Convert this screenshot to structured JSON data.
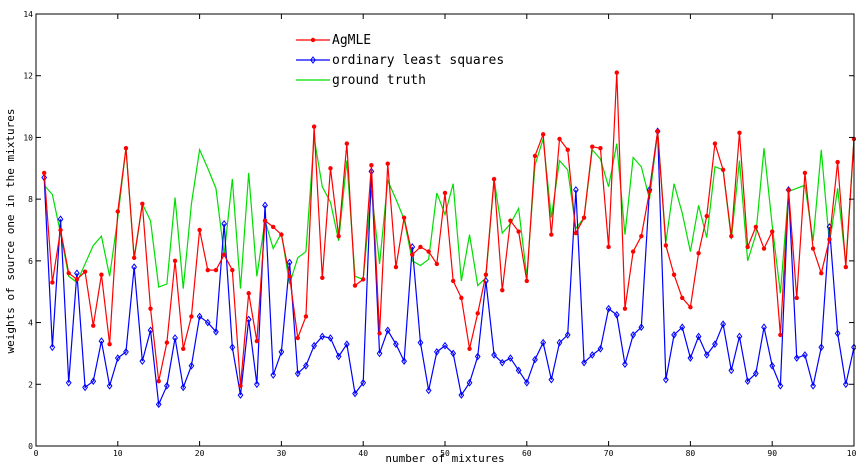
{
  "chart_data": {
    "type": "line",
    "xlabel": "number of mixtures",
    "ylabel": "weights of source one in the mixtures",
    "xlim": [
      0,
      100
    ],
    "ylim": [
      0,
      14
    ],
    "xticks": [
      0,
      10,
      20,
      30,
      40,
      50,
      60,
      70,
      80,
      90,
      100
    ],
    "yticks": [
      0,
      2,
      4,
      6,
      8,
      10,
      12,
      14
    ],
    "grid": false,
    "legend_position": "top-left",
    "series": [
      {
        "name": "AgMLE",
        "color": "#ff0000",
        "marker": "dot",
        "x": [
          1,
          2,
          3,
          4,
          5,
          6,
          7,
          8,
          9,
          10,
          11,
          12,
          13,
          14,
          15,
          16,
          17,
          18,
          19,
          20,
          21,
          22,
          23,
          24,
          25,
          26,
          27,
          28,
          29,
          30,
          31,
          32,
          33,
          34,
          35,
          36,
          37,
          38,
          39,
          40,
          41,
          42,
          43,
          44,
          45,
          46,
          47,
          48,
          49,
          50,
          51,
          52,
          53,
          54,
          55,
          56,
          57,
          58,
          59,
          60,
          61,
          62,
          63,
          64,
          65,
          66,
          67,
          68,
          69,
          70,
          71,
          72,
          73,
          74,
          75,
          76,
          77,
          78,
          79,
          80,
          81,
          82,
          83,
          84,
          85,
          86,
          87,
          88,
          89,
          90,
          91,
          92,
          93,
          94,
          95,
          96,
          97,
          98,
          99,
          100
        ],
        "values": [
          8.85,
          5.3,
          7.0,
          5.6,
          5.4,
          5.65,
          3.9,
          5.55,
          3.3,
          7.6,
          9.65,
          6.1,
          7.85,
          4.45,
          2.1,
          3.35,
          6.0,
          3.15,
          4.2,
          7.0,
          5.7,
          5.7,
          6.2,
          5.7,
          1.95,
          4.95,
          3.4,
          7.3,
          7.1,
          6.85,
          5.5,
          3.5,
          4.2,
          10.35,
          5.45,
          9.0,
          6.8,
          9.8,
          5.2,
          5.4,
          9.1,
          3.65,
          9.15,
          5.8,
          7.4,
          6.2,
          6.45,
          6.3,
          5.9,
          8.2,
          5.35,
          4.8,
          3.15,
          4.3,
          5.55,
          8.65,
          5.05,
          7.3,
          6.95,
          5.35,
          9.4,
          10.1,
          6.85,
          9.95,
          9.6,
          6.9,
          7.4,
          9.7,
          9.65,
          6.45,
          12.1,
          4.45,
          6.3,
          6.8,
          8.25,
          10.2,
          6.5,
          5.55,
          4.8,
          4.5,
          6.25,
          7.45,
          9.8,
          8.95,
          6.8,
          10.15,
          6.45,
          7.1,
          6.4,
          6.95,
          3.6,
          8.3,
          4.8,
          8.85,
          6.4,
          5.6,
          6.7,
          9.2,
          5.8,
          9.95
        ]
      },
      {
        "name": "ordinary least squares",
        "color": "#0000ff",
        "marker": "diamond",
        "x": [
          1,
          2,
          3,
          4,
          5,
          6,
          7,
          8,
          9,
          10,
          11,
          12,
          13,
          14,
          15,
          16,
          17,
          18,
          19,
          20,
          21,
          22,
          23,
          24,
          25,
          26,
          27,
          28,
          29,
          30,
          31,
          32,
          33,
          34,
          35,
          36,
          37,
          38,
          39,
          40,
          41,
          42,
          43,
          44,
          45,
          46,
          47,
          48,
          49,
          50,
          51,
          52,
          53,
          54,
          55,
          56,
          57,
          58,
          59,
          60,
          61,
          62,
          63,
          64,
          65,
          66,
          67,
          68,
          69,
          70,
          71,
          72,
          73,
          74,
          75,
          76,
          77,
          78,
          79,
          80,
          81,
          82,
          83,
          84,
          85,
          86,
          87,
          88,
          89,
          90,
          91,
          92,
          93,
          94,
          95,
          96,
          97,
          98,
          99,
          100
        ],
        "values": [
          8.7,
          3.2,
          7.35,
          2.05,
          5.6,
          1.9,
          2.1,
          3.4,
          1.95,
          2.85,
          3.05,
          5.8,
          2.75,
          3.75,
          1.35,
          1.95,
          3.5,
          1.9,
          2.6,
          4.2,
          4.0,
          3.7,
          7.2,
          3.2,
          1.65,
          4.1,
          2.0,
          7.8,
          2.3,
          3.05,
          5.95,
          2.35,
          2.6,
          3.25,
          3.55,
          3.5,
          2.9,
          3.3,
          1.7,
          2.05,
          8.9,
          3.0,
          3.75,
          3.3,
          2.75,
          6.45,
          3.35,
          1.8,
          3.05,
          3.25,
          3.0,
          1.65,
          2.05,
          2.9,
          5.35,
          2.95,
          2.7,
          2.85,
          2.45,
          2.05,
          2.8,
          3.35,
          2.15,
          3.35,
          3.6,
          8.3,
          2.7,
          2.95,
          3.15,
          4.45,
          4.25,
          2.65,
          3.6,
          3.85,
          8.3,
          10.2,
          2.15,
          3.6,
          3.85,
          2.85,
          3.55,
          2.95,
          3.3,
          3.95,
          2.45,
          3.55,
          2.1,
          2.35,
          3.85,
          2.6,
          1.95,
          8.3,
          2.85,
          2.95,
          1.95,
          3.2,
          7.1,
          3.65,
          2.0,
          3.2
        ]
      },
      {
        "name": "ground truth",
        "color": "#00dd00",
        "marker": "none",
        "x": [
          1,
          2,
          3,
          4,
          5,
          6,
          7,
          8,
          9,
          10,
          11,
          12,
          13,
          14,
          15,
          16,
          17,
          18,
          19,
          20,
          21,
          22,
          23,
          24,
          25,
          26,
          27,
          28,
          29,
          30,
          31,
          32,
          33,
          34,
          35,
          36,
          37,
          38,
          39,
          40,
          41,
          42,
          43,
          44,
          45,
          46,
          47,
          48,
          49,
          50,
          51,
          52,
          53,
          54,
          55,
          56,
          57,
          58,
          59,
          60,
          61,
          62,
          63,
          64,
          65,
          66,
          67,
          68,
          69,
          70,
          71,
          72,
          73,
          74,
          75,
          76,
          77,
          78,
          79,
          80,
          81,
          82,
          83,
          84,
          85,
          86,
          87,
          88,
          89,
          90,
          91,
          92,
          93,
          94,
          95,
          96,
          97,
          98,
          99,
          100
        ],
        "values": [
          8.45,
          8.15,
          6.9,
          5.5,
          5.3,
          5.9,
          6.5,
          6.8,
          5.5,
          7.4,
          9.65,
          6.05,
          7.85,
          7.3,
          5.15,
          5.25,
          8.05,
          5.1,
          7.85,
          9.6,
          9.0,
          8.35,
          6.2,
          8.65,
          5.1,
          8.85,
          5.5,
          7.3,
          6.4,
          6.9,
          5.25,
          6.1,
          6.3,
          10.0,
          8.4,
          7.9,
          6.65,
          9.25,
          5.5,
          5.4,
          8.3,
          5.9,
          8.6,
          8.0,
          7.35,
          6.0,
          5.85,
          6.05,
          8.2,
          7.5,
          8.5,
          5.35,
          6.85,
          5.2,
          5.45,
          8.65,
          6.9,
          7.2,
          7.7,
          5.5,
          9.1,
          9.95,
          7.4,
          9.25,
          8.95,
          7.05,
          7.4,
          9.6,
          9.3,
          8.4,
          9.8,
          6.85,
          9.35,
          9.05,
          8.0,
          10.2,
          6.6,
          8.5,
          7.55,
          6.3,
          7.8,
          6.75,
          9.05,
          8.95,
          6.7,
          9.25,
          6.0,
          6.85,
          9.65,
          7.15,
          4.95,
          8.25,
          8.35,
          8.45,
          6.65,
          9.6,
          6.55,
          8.35,
          5.9,
          9.95
        ]
      }
    ]
  }
}
